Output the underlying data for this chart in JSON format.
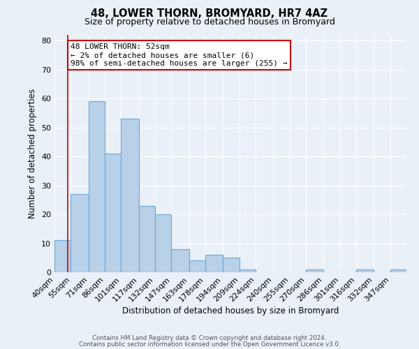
{
  "title": "48, LOWER THORN, BROMYARD, HR7 4AZ",
  "subtitle": "Size of property relative to detached houses in Bromyard",
  "xlabel": "Distribution of detached houses by size in Bromyard",
  "ylabel": "Number of detached properties",
  "bin_labels": [
    "40sqm",
    "55sqm",
    "71sqm",
    "86sqm",
    "101sqm",
    "117sqm",
    "132sqm",
    "147sqm",
    "163sqm",
    "178sqm",
    "194sqm",
    "209sqm",
    "224sqm",
    "240sqm",
    "255sqm",
    "270sqm",
    "286sqm",
    "301sqm",
    "316sqm",
    "332sqm",
    "347sqm"
  ],
  "bar_heights": [
    11,
    27,
    59,
    41,
    53,
    23,
    20,
    8,
    4,
    6,
    5,
    1,
    0,
    0,
    0,
    1,
    0,
    0,
    1,
    0,
    1
  ],
  "bar_color": "#b8d0e8",
  "bar_edge_color": "#6aaad4",
  "bar_edge_width": 0.8,
  "red_line_x": 52,
  "annotation_title": "48 LOWER THORN: 52sqm",
  "annotation_line1": "← 2% of detached houses are smaller (6)",
  "annotation_line2": "98% of semi-detached houses are larger (255) →",
  "annotation_box_color": "#ffffff",
  "annotation_box_edge_color": "#cc0000",
  "ylim": [
    0,
    82
  ],
  "yticks": [
    0,
    10,
    20,
    30,
    40,
    50,
    60,
    70,
    80
  ],
  "background_color": "#eaf0f8",
  "grid_color": "#ffffff",
  "footer1": "Contains HM Land Registry data © Crown copyright and database right 2024.",
  "footer2": "Contains public sector information licensed under the Open Government Licence v3.0.",
  "bin_edges": [
    40,
    55,
    71,
    86,
    101,
    117,
    132,
    147,
    163,
    178,
    194,
    209,
    224,
    240,
    255,
    270,
    286,
    301,
    316,
    332,
    347,
    362
  ]
}
